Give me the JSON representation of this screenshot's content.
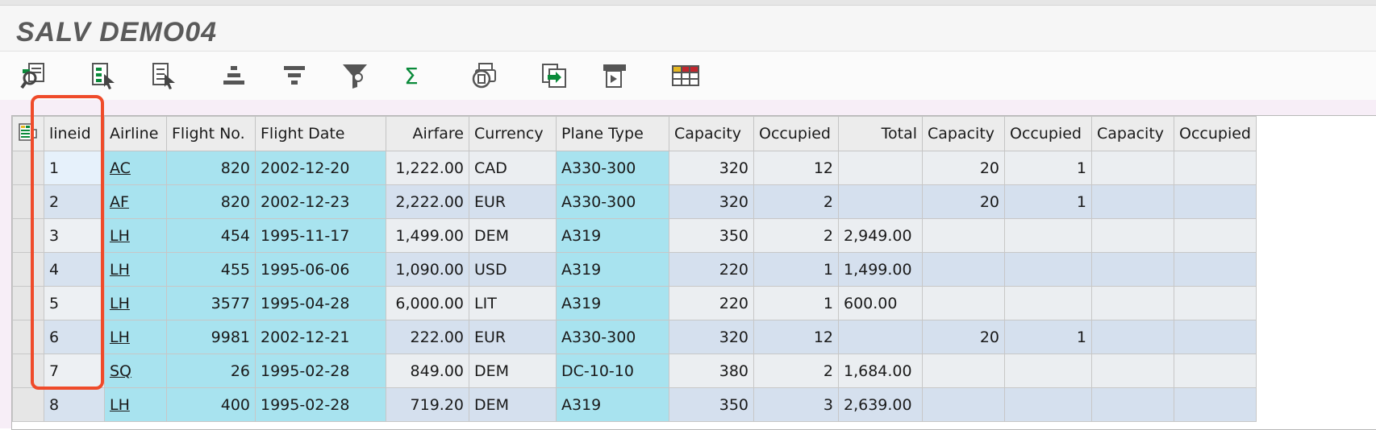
{
  "window": {
    "title": "SALV DEMO04"
  },
  "toolbar": {
    "buttons": [
      {
        "name": "details-button",
        "icon": "magnifier-list-icon"
      },
      {
        "name": "select-all-button",
        "icon": "select-all-icon"
      },
      {
        "name": "deselect-all-button",
        "icon": "deselect-all-icon"
      },
      {
        "name": "sort-ascending-button",
        "icon": "sort-ascending-icon"
      },
      {
        "name": "sort-descending-button",
        "icon": "sort-descending-icon"
      },
      {
        "name": "filter-button",
        "icon": "funnel-icon"
      },
      {
        "name": "total-button",
        "icon": "sigma-icon",
        "glyph": "Σ"
      },
      {
        "name": "print-preview-button",
        "icon": "print-preview-icon"
      },
      {
        "name": "export-button",
        "icon": "export-icon"
      },
      {
        "name": "views-button",
        "icon": "views-icon"
      },
      {
        "name": "layout-button",
        "icon": "layout-grid-icon"
      }
    ],
    "colors": {
      "accent_green": "#0a8a3a",
      "icon_gray": "#555555",
      "grid_red": "#c2262e",
      "grid_yellow": "#e5b722"
    }
  },
  "grid": {
    "columns": [
      "lineid",
      "Airline",
      "Flight No.",
      "Flight Date",
      "Airfare",
      "Currency",
      "Plane Type",
      "Capacity",
      "Occupied",
      "Total",
      "Capacity",
      "Occupied",
      "Capacity",
      "Occupied"
    ],
    "rows": [
      [
        "1",
        "AC",
        "820",
        "2002-12-20",
        "1,222.00",
        "CAD",
        "A330-300",
        "320",
        "12",
        "",
        "20",
        "1",
        "",
        ""
      ],
      [
        "2",
        "AF",
        "820",
        "2002-12-23",
        "2,222.00",
        "EUR",
        "A330-300",
        "320",
        "2",
        "",
        "20",
        "1",
        "",
        ""
      ],
      [
        "3",
        "LH",
        "454",
        "1995-11-17",
        "1,499.00",
        "DEM",
        "A319",
        "350",
        "2",
        "2,949.00",
        "",
        "",
        "",
        ""
      ],
      [
        "4",
        "LH",
        "455",
        "1995-06-06",
        "1,090.00",
        "USD",
        "A319",
        "220",
        "1",
        "1,499.00",
        "",
        "",
        "",
        ""
      ],
      [
        "5",
        "LH",
        "3577",
        "1995-04-28",
        "6,000.00",
        "LIT",
        "A319",
        "220",
        "1",
        "600.00",
        "",
        "",
        "",
        ""
      ],
      [
        "6",
        "LH",
        "9981",
        "2002-12-21",
        "222.00",
        "EUR",
        "A330-300",
        "320",
        "12",
        "",
        "20",
        "1",
        "",
        ""
      ],
      [
        "7",
        "SQ",
        "26",
        "1995-02-28",
        "849.00",
        "DEM",
        "DC-10-10",
        "380",
        "2",
        "1,684.00",
        "",
        "",
        "",
        ""
      ],
      [
        "8",
        "LH",
        "400",
        "1995-02-28",
        "719.20",
        "DEM",
        "A319",
        "350",
        "3",
        "2,639.00",
        "",
        "",
        "",
        ""
      ]
    ],
    "highlight_color": "#ef4b2a"
  }
}
